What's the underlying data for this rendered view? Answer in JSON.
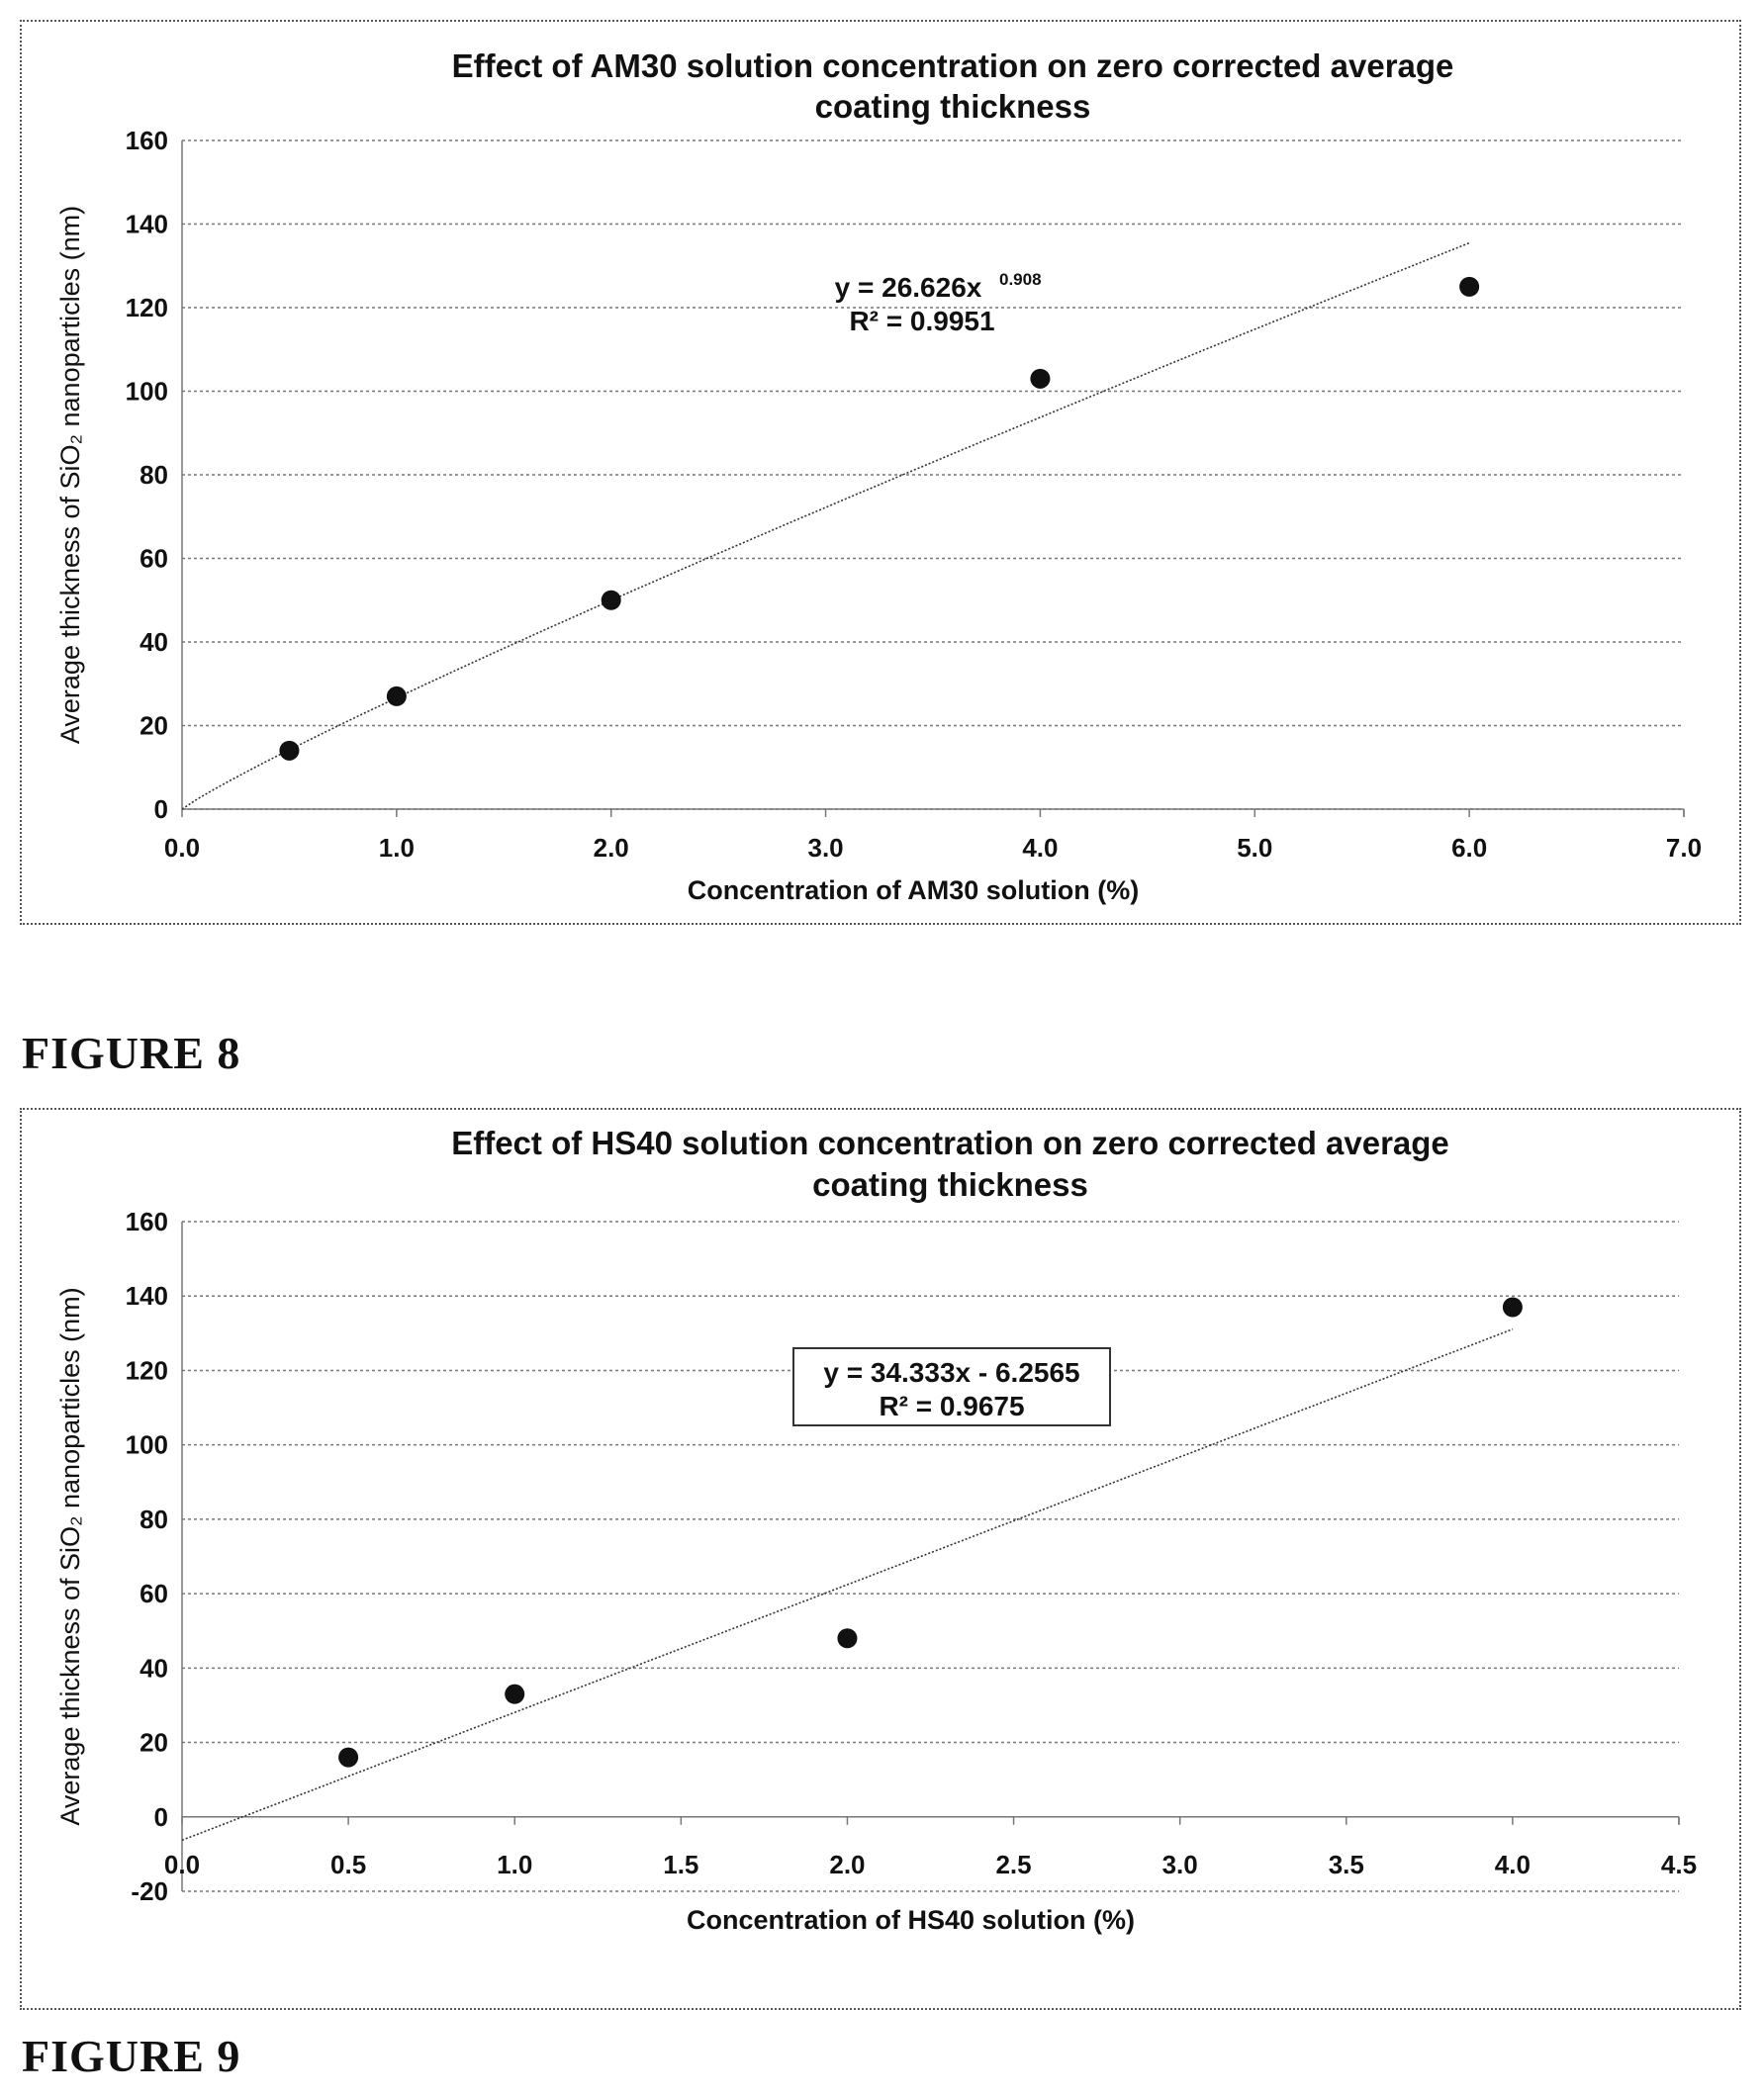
{
  "figures": [
    {
      "caption": "FIGURE 8"
    },
    {
      "caption": "FIGURE 9"
    }
  ],
  "chart_data": [
    {
      "type": "scatter",
      "title_line1": "Effect of AM30 solution concentration on zero corrected average",
      "title_line2": "coating thickness",
      "xlabel": "Concentration of AM30 solution (%)",
      "ylabel": "Average thickness of SiO₂ nanoparticles (nm)",
      "xlim": [
        0,
        7
      ],
      "ylim": [
        0,
        160
      ],
      "xticks": [
        "0.0",
        "1.0",
        "2.0",
        "3.0",
        "4.0",
        "5.0",
        "6.0",
        "7.0"
      ],
      "xtick_values": [
        0,
        1,
        2,
        3,
        4,
        5,
        6,
        7
      ],
      "yticks": [
        "0",
        "20",
        "40",
        "60",
        "80",
        "100",
        "120",
        "140",
        "160"
      ],
      "ytick_values": [
        0,
        20,
        40,
        60,
        80,
        100,
        120,
        140,
        160
      ],
      "grid": true,
      "series": [
        {
          "x": [
            0.5,
            1.0,
            2.0,
            4.0,
            6.0
          ],
          "y": [
            14,
            27,
            50,
            103,
            125
          ]
        }
      ],
      "trendline": {
        "kind": "power",
        "a": 26.626,
        "b": 0.908,
        "x_range": [
          0,
          6
        ]
      },
      "equation": "y = 26.626x",
      "equation_exponent": "0.908",
      "r_squared": "R² = 0.9951"
    },
    {
      "type": "scatter",
      "title_line1": "Effect of HS40 solution concentration on zero corrected average",
      "title_line2": "coating thickness",
      "xlabel": "Concentration of HS40 solution (%)",
      "ylabel": "Average thickness of SiO₂ nanoparticles (nm)",
      "xlim": [
        0,
        4.5
      ],
      "ylim": [
        -20,
        160
      ],
      "xticks": [
        "0.0",
        "0.5",
        "1.0",
        "1.5",
        "2.0",
        "2.5",
        "3.0",
        "3.5",
        "4.0",
        "4.5"
      ],
      "xtick_values": [
        0,
        0.5,
        1.0,
        1.5,
        2.0,
        2.5,
        3.0,
        3.5,
        4.0,
        4.5
      ],
      "yticks": [
        "-20",
        "0",
        "20",
        "40",
        "60",
        "80",
        "100",
        "120",
        "140",
        "160"
      ],
      "ytick_values": [
        -20,
        0,
        20,
        40,
        60,
        80,
        100,
        120,
        140,
        160
      ],
      "grid": true,
      "series": [
        {
          "x": [
            0.5,
            1.0,
            2.0,
            4.0
          ],
          "y": [
            16,
            33,
            48,
            137
          ]
        }
      ],
      "trendline": {
        "kind": "linear",
        "slope": 34.333,
        "intercept": -6.2565,
        "x_range": [
          0,
          4
        ]
      },
      "equation": "y = 34.333x - 6.2565",
      "r_squared": "R² = 0.9675"
    }
  ]
}
